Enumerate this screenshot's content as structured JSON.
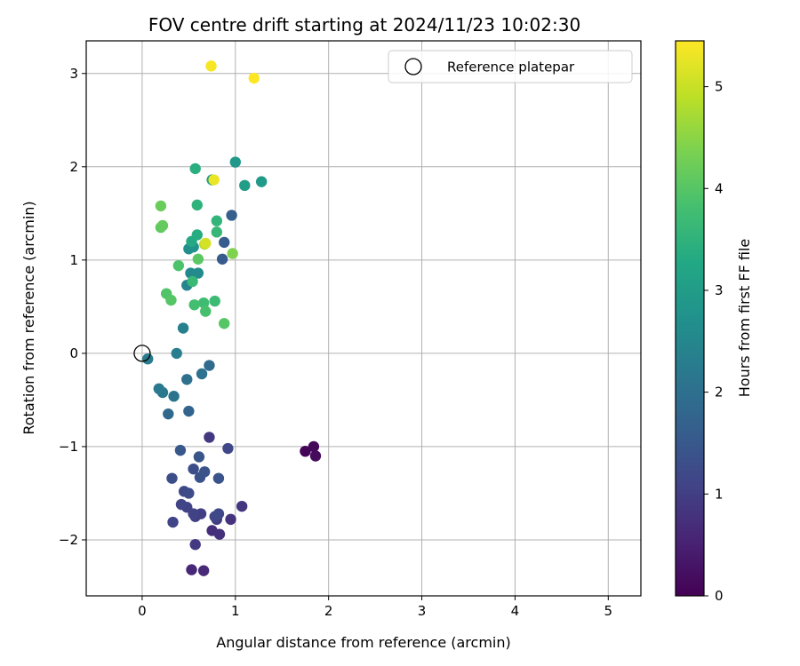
{
  "chart_data": {
    "type": "scatter",
    "title": "FOV centre drift starting at 2024/11/23 10:02:30",
    "xlabel": "Angular distance from reference (arcmin)",
    "ylabel": "Rotation from reference (arcmin)",
    "xlim": [
      -0.6,
      5.35
    ],
    "ylim": [
      -2.6,
      3.35
    ],
    "xticks": [
      0,
      1,
      2,
      3,
      4,
      5
    ],
    "xtick_labels": [
      "0",
      "1",
      "2",
      "3",
      "4",
      "5"
    ],
    "yticks": [
      -2,
      -1,
      0,
      1,
      2,
      3
    ],
    "ytick_labels": [
      "−2",
      "−1",
      "0",
      "1",
      "2",
      "3"
    ],
    "grid": true,
    "legend": {
      "position": "top-right",
      "entries": [
        "Reference platepar"
      ]
    },
    "reference_point": {
      "x": 0,
      "y": 0
    },
    "colorbar": {
      "label": "Hours from first FF file",
      "min": 0,
      "max": 5.45,
      "ticks": [
        0,
        1,
        2,
        3,
        4,
        5
      ],
      "tick_labels": [
        "0",
        "1",
        "2",
        "3",
        "4",
        "5"
      ],
      "colormap": "viridis"
    },
    "points": [
      {
        "x": 1.75,
        "y": -1.05,
        "c": 0.05
      },
      {
        "x": 1.84,
        "y": -1.0,
        "c": 0.1
      },
      {
        "x": 1.86,
        "y": -1.1,
        "c": 0.15
      },
      {
        "x": 0.53,
        "y": -2.32,
        "c": 0.6
      },
      {
        "x": 0.66,
        "y": -2.33,
        "c": 0.65
      },
      {
        "x": 0.75,
        "y": -1.9,
        "c": 0.7
      },
      {
        "x": 0.83,
        "y": -1.94,
        "c": 0.75
      },
      {
        "x": 0.95,
        "y": -1.78,
        "c": 0.8
      },
      {
        "x": 1.07,
        "y": -1.64,
        "c": 0.85
      },
      {
        "x": 0.72,
        "y": -0.9,
        "c": 0.9
      },
      {
        "x": 0.57,
        "y": -2.05,
        "c": 0.9
      },
      {
        "x": 0.8,
        "y": -1.78,
        "c": 0.95
      },
      {
        "x": 0.63,
        "y": -1.72,
        "c": 1.0
      },
      {
        "x": 0.57,
        "y": -1.75,
        "c": 1.0
      },
      {
        "x": 0.55,
        "y": -1.72,
        "c": 1.05
      },
      {
        "x": 0.48,
        "y": -1.65,
        "c": 1.05
      },
      {
        "x": 0.42,
        "y": -1.62,
        "c": 1.1
      },
      {
        "x": 0.33,
        "y": -1.81,
        "c": 1.1
      },
      {
        "x": 0.92,
        "y": -1.02,
        "c": 1.15
      },
      {
        "x": 0.78,
        "y": -1.75,
        "c": 1.15
      },
      {
        "x": 0.82,
        "y": -1.72,
        "c": 1.2
      },
      {
        "x": 0.45,
        "y": -1.48,
        "c": 1.2
      },
      {
        "x": 0.5,
        "y": -1.5,
        "c": 1.25
      },
      {
        "x": 0.32,
        "y": -1.34,
        "c": 1.3
      },
      {
        "x": 0.55,
        "y": -1.24,
        "c": 1.3
      },
      {
        "x": 0.62,
        "y": -1.33,
        "c": 1.35
      },
      {
        "x": 0.67,
        "y": -1.27,
        "c": 1.4
      },
      {
        "x": 0.82,
        "y": -1.34,
        "c": 1.4
      },
      {
        "x": 0.61,
        "y": -1.11,
        "c": 1.45
      },
      {
        "x": 0.41,
        "y": -1.04,
        "c": 1.5
      },
      {
        "x": 0.86,
        "y": 1.01,
        "c": 1.55
      },
      {
        "x": 0.88,
        "y": 1.19,
        "c": 1.6
      },
      {
        "x": 0.96,
        "y": 1.48,
        "c": 1.65
      },
      {
        "x": 0.5,
        "y": -0.62,
        "c": 1.75
      },
      {
        "x": 0.28,
        "y": -0.65,
        "c": 1.85
      },
      {
        "x": 0.72,
        "y": -0.13,
        "c": 1.9
      },
      {
        "x": 0.48,
        "y": -0.28,
        "c": 2.0
      },
      {
        "x": 0.64,
        "y": -0.22,
        "c": 2.05
      },
      {
        "x": 0.34,
        "y": -0.46,
        "c": 2.1
      },
      {
        "x": 0.22,
        "y": -0.42,
        "c": 2.15
      },
      {
        "x": 0.18,
        "y": -0.38,
        "c": 2.2
      },
      {
        "x": 0.06,
        "y": -0.06,
        "c": 2.25
      },
      {
        "x": 0.37,
        "y": 0.0,
        "c": 2.3
      },
      {
        "x": 0.44,
        "y": 0.27,
        "c": 2.35
      },
      {
        "x": 0.48,
        "y": 0.73,
        "c": 2.45
      },
      {
        "x": 0.52,
        "y": 0.86,
        "c": 2.55
      },
      {
        "x": 0.6,
        "y": 0.86,
        "c": 2.6
      },
      {
        "x": 0.5,
        "y": 1.12,
        "c": 2.7
      },
      {
        "x": 0.55,
        "y": 1.14,
        "c": 2.75
      },
      {
        "x": 1.0,
        "y": 2.05,
        "c": 2.9
      },
      {
        "x": 1.28,
        "y": 1.84,
        "c": 2.95
      },
      {
        "x": 1.1,
        "y": 1.8,
        "c": 3.0
      },
      {
        "x": 0.75,
        "y": 1.86,
        "c": 3.05
      },
      {
        "x": 0.53,
        "y": 1.2,
        "c": 3.3
      },
      {
        "x": 0.59,
        "y": 1.27,
        "c": 3.35
      },
      {
        "x": 0.57,
        "y": 1.98,
        "c": 3.4
      },
      {
        "x": 0.59,
        "y": 1.59,
        "c": 3.5
      },
      {
        "x": 0.8,
        "y": 1.42,
        "c": 3.55
      },
      {
        "x": 0.8,
        "y": 1.3,
        "c": 3.6
      },
      {
        "x": 0.54,
        "y": 0.77,
        "c": 3.65
      },
      {
        "x": 0.78,
        "y": 0.56,
        "c": 3.7
      },
      {
        "x": 0.66,
        "y": 0.54,
        "c": 3.75
      },
      {
        "x": 0.56,
        "y": 0.52,
        "c": 3.8
      },
      {
        "x": 0.68,
        "y": 0.45,
        "c": 3.85
      },
      {
        "x": 0.39,
        "y": 0.94,
        "c": 3.9
      },
      {
        "x": 0.26,
        "y": 0.64,
        "c": 3.95
      },
      {
        "x": 0.31,
        "y": 0.57,
        "c": 4.0
      },
      {
        "x": 0.88,
        "y": 0.32,
        "c": 4.0
      },
      {
        "x": 0.6,
        "y": 1.01,
        "c": 4.05
      },
      {
        "x": 0.2,
        "y": 1.35,
        "c": 4.1
      },
      {
        "x": 0.22,
        "y": 1.37,
        "c": 4.15
      },
      {
        "x": 0.2,
        "y": 1.58,
        "c": 4.2
      },
      {
        "x": 0.97,
        "y": 1.07,
        "c": 4.4
      },
      {
        "x": 0.67,
        "y": 1.17,
        "c": 4.8
      },
      {
        "x": 0.68,
        "y": 1.18,
        "c": 5.1
      },
      {
        "x": 0.77,
        "y": 1.86,
        "c": 5.3
      },
      {
        "x": 0.74,
        "y": 3.08,
        "c": 5.4
      },
      {
        "x": 1.2,
        "y": 2.95,
        "c": 5.45
      }
    ]
  }
}
